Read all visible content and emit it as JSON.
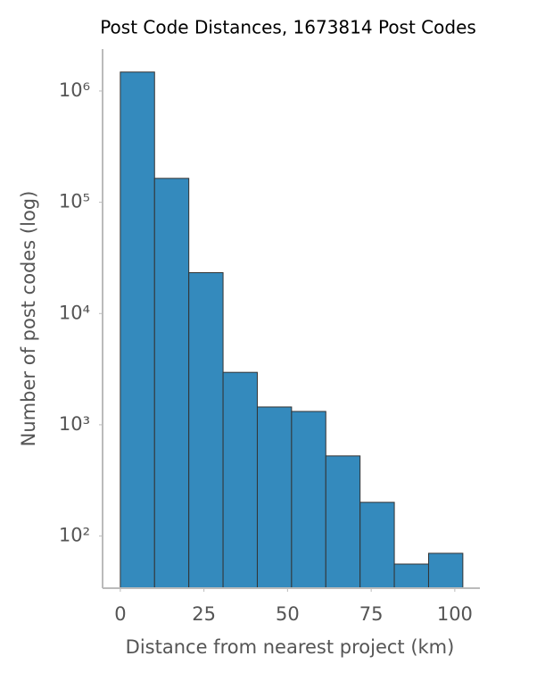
{
  "chart_data": {
    "type": "histogram",
    "title": "Post Code Distances, 1673814 Post Codes",
    "xlabel": "Distance from nearest project (km)",
    "ylabel": "Number of post codes (log)",
    "bins": [
      0,
      10.24,
      20.48,
      30.72,
      40.96,
      51.2,
      61.44,
      71.68,
      81.92,
      92.16,
      102.4
    ],
    "values": [
      1480000,
      164000,
      23300,
      2960,
      1446,
      1318,
      525,
      201,
      56,
      70
    ],
    "color": "#348abd",
    "edgecolor": "#333333",
    "xlim": [
      -5.3,
      107.5
    ],
    "xticks": [
      0,
      25,
      50,
      75,
      100
    ],
    "ylim": [
      34,
      2380000
    ],
    "yscale": "log",
    "yticks": [
      {
        "value": 100,
        "label": "10²"
      },
      {
        "value": 1000,
        "label": "10³"
      },
      {
        "value": 10000,
        "label": "10⁴"
      },
      {
        "value": 100000,
        "label": "10⁵"
      },
      {
        "value": 1000000,
        "label": "10⁶"
      }
    ],
    "grid": false
  }
}
